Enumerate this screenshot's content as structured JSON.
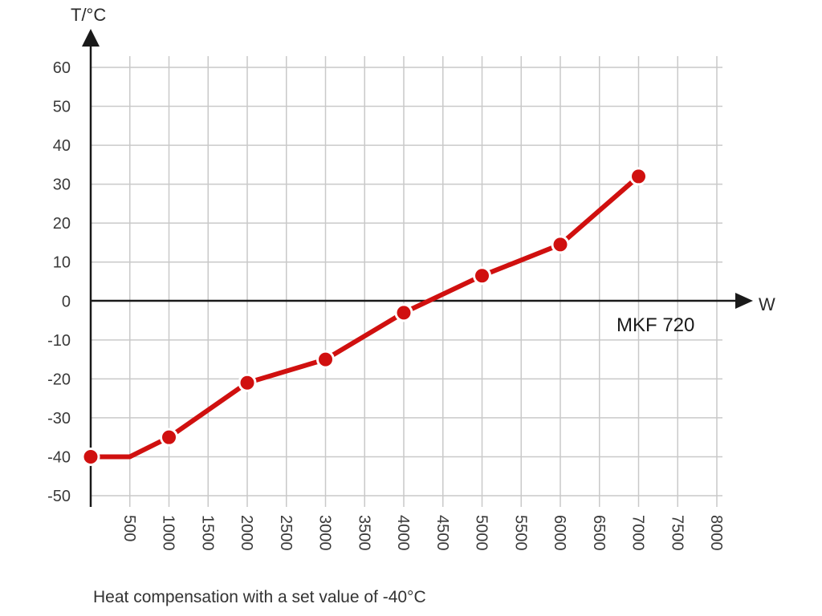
{
  "chart_data": {
    "type": "line",
    "title": "",
    "xlabel": "W",
    "ylabel": "T/°C",
    "xlim": [
      0,
      8000
    ],
    "ylim": [
      -50,
      60
    ],
    "x_ticks": [
      500,
      1000,
      1500,
      2000,
      2500,
      3000,
      3500,
      4000,
      4500,
      5000,
      5500,
      6000,
      6500,
      7000,
      7500,
      8000
    ],
    "y_ticks": [
      60,
      50,
      40,
      30,
      20,
      10,
      0,
      -10,
      -20,
      -30,
      -40,
      -50
    ],
    "grid": true,
    "series": [
      {
        "name": "MKF 720",
        "color": "#d0100f",
        "x": [
          0,
          500,
          1000,
          2000,
          3000,
          4000,
          5000,
          6000,
          7000
        ],
        "y": [
          -40,
          -40,
          -35,
          -21,
          -15,
          -3,
          6.5,
          14.5,
          32
        ],
        "markers": [
          true,
          false,
          true,
          true,
          true,
          true,
          true,
          true,
          true
        ]
      }
    ]
  },
  "caption": "Heat compensation with a set value of -40°C"
}
